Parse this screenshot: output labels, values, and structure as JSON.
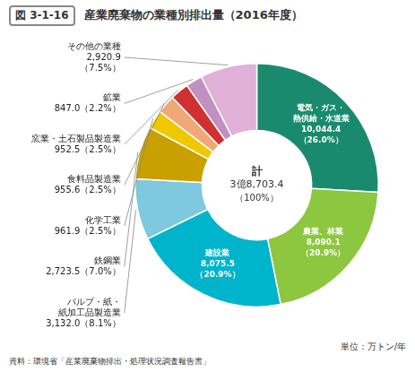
{
  "chart_data": {
    "type": "doughnut",
    "figure_label": "図 3-1-16",
    "title": "産業廃棄物の業種別排出量（2016年度）",
    "center_text": [
      "計",
      "3億8,703.4",
      "（100%）"
    ],
    "unit_text": "単位：万トン/年",
    "source_text": "資料：環境省「産業廃棄物排出・処理状況調査報告書」",
    "categories": [
      "電気・ガス・\n熱供給・水道業",
      "農業、林業",
      "建設業",
      "パルプ・紙・\n紙加工品製造業",
      "鉄鋼業",
      "化学工業",
      "食料品製造業",
      "窯業・土石製品製造業",
      "鉱業",
      "その他の業種"
    ],
    "values": [
      10044.4,
      8090.1,
      8075.5,
      3132.0,
      2723.5,
      961.9,
      955.6,
      952.5,
      847.0,
      2920.9
    ],
    "value_labels": [
      "10,044.4\n（26.0%）",
      "8,090.1\n（20.9%）",
      "8,075.5\n（20.9%）",
      "3,132.0（8.1%）",
      "2,723.5（7.0%）",
      "961.9（2.5%）",
      "955.6（2.5%）",
      "952.5（2.5%）",
      "847.0（2.2%）",
      "2,920.9\n（7.5%）"
    ],
    "colors": [
      "#1a8a6e",
      "#8dc63f",
      "#00b4cc",
      "#7ec8e0",
      "#c8a000",
      "#f0c800",
      "#f0a878",
      "#d03030",
      "#c090c0",
      "#e0b0d8"
    ],
    "data_labels": true
  }
}
